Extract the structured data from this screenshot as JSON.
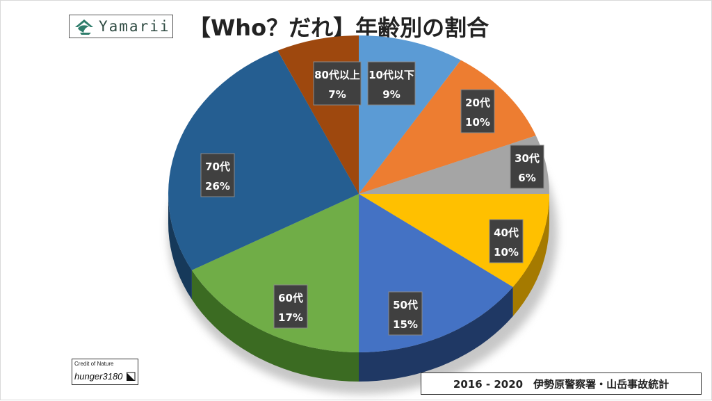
{
  "logo": {
    "text": "Yamarii"
  },
  "title": "【Who？だれ】年齢別の割合",
  "credit": {
    "label": "Credit of Nature",
    "name": "hunger3180"
  },
  "source": "2016 - 2020　伊勢原警察署・山岳事故統計",
  "chart_data": {
    "type": "pie",
    "title": "【Who？だれ】年齢別の割合",
    "categories": [
      "10代以下",
      "20代",
      "30代",
      "40代",
      "50代",
      "60代",
      "70代",
      "80代以上"
    ],
    "values": [
      9,
      10,
      6,
      10,
      15,
      17,
      26,
      7
    ],
    "labels": [
      "9%",
      "10%",
      "6%",
      "10%",
      "15%",
      "17%",
      "26%",
      "7%"
    ],
    "colors": [
      "#5b9bd5",
      "#ed7d31",
      "#a5a5a5",
      "#ffc000",
      "#4472c4",
      "#70ad47",
      "#255e91",
      "#9e480e"
    ],
    "side_colors": [
      "#3e6f9c",
      "#a9541d",
      "#707070",
      "#a57a00",
      "#1f3864",
      "#3b6b22",
      "#16395a",
      "#5e2a08"
    ],
    "legend": "none"
  }
}
